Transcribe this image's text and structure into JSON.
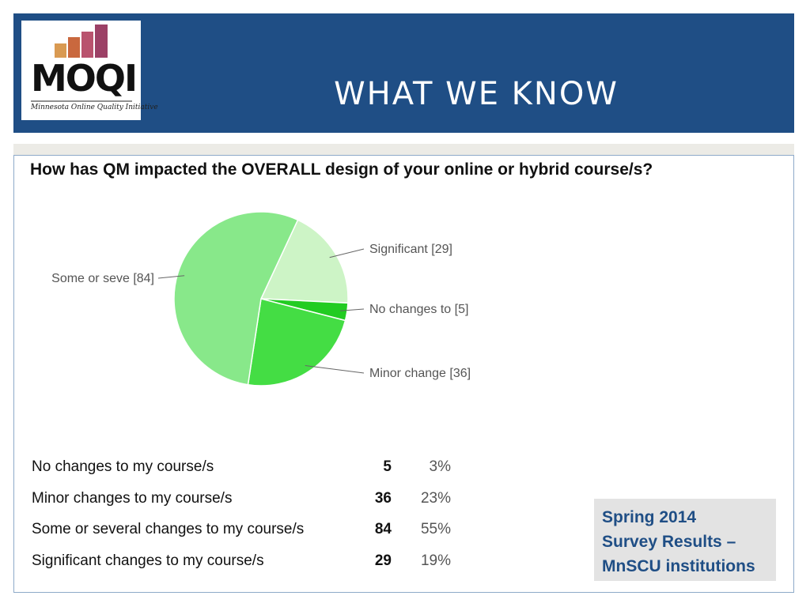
{
  "header": {
    "title": "WHAT WE KNOW",
    "logo_text": "MOQI",
    "logo_tagline": "Minnesota Online Quality Initiative",
    "logo_bar_colors": [
      "#d99a52",
      "#c9683e",
      "#b9536e",
      "#9c4166"
    ],
    "background_color": "#1f4e85"
  },
  "chart_data": {
    "type": "pie",
    "title": "How has QM impacted the OVERALL design of your online or hybrid course/s?",
    "slices": [
      {
        "label": "Significant  [29]",
        "value": 29,
        "color": "#cdf4c6"
      },
      {
        "label": "No changes to [5]",
        "value": 5,
        "color": "#22cc22"
      },
      {
        "label": "Minor change [36]",
        "value": 36,
        "color": "#44dd44"
      },
      {
        "label": "Some or seve [84]",
        "value": 84,
        "color": "#88e88a"
      }
    ],
    "legend": "none",
    "table": [
      {
        "label": "No changes to my course/s",
        "count": "5",
        "percent": "3%"
      },
      {
        "label": "Minor changes to my course/s",
        "count": "36",
        "percent": "23%"
      },
      {
        "label": "Some or several changes to my course/s",
        "count": "84",
        "percent": "55%"
      },
      {
        "label": "Significant changes to my course/s",
        "count": "29",
        "percent": "19%"
      }
    ]
  },
  "note": {
    "lines": [
      "Spring 2014",
      "Survey Results –",
      "MnSCU institutions"
    ],
    "text_color": "#1f4e85"
  }
}
